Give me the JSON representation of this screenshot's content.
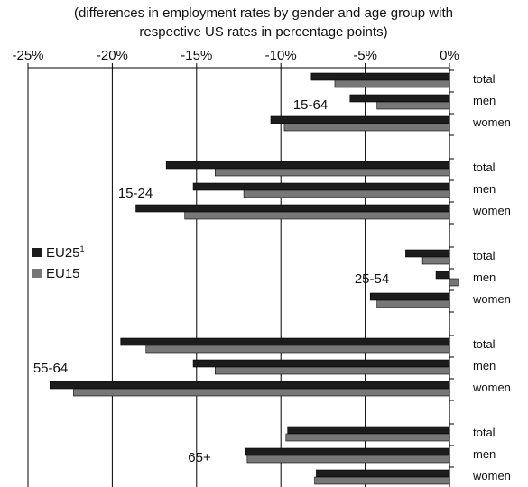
{
  "chart_data": {
    "type": "bar",
    "orientation": "horizontal",
    "title": "(differences in employment rates by gender and age group with respective US rates in percentage points)",
    "title_lines": [
      "(differences in employment rates by gender and age group with",
      "respective US rates in percentage points)"
    ],
    "xlim": [
      -25,
      0
    ],
    "x_ticks": [
      -25,
      -20,
      -15,
      -10,
      -5,
      0
    ],
    "x_tick_labels": [
      "-25%",
      "-20%",
      "-15%",
      "-10%",
      "-5%",
      "0%"
    ],
    "grid": "vertical",
    "legend_placement": "left-middle",
    "legend": [
      {
        "label": "EU25",
        "sup": "1",
        "color": "#1c1c1c"
      },
      {
        "label": "EU15",
        "sup": "",
        "color": "#777777"
      }
    ],
    "groups": [
      {
        "label": "15-64",
        "categories": [
          "total",
          "men",
          "women"
        ]
      },
      {
        "label": "15-24",
        "categories": [
          "total",
          "men",
          "women"
        ]
      },
      {
        "label": "25-54",
        "categories": [
          "total",
          "men",
          "women"
        ]
      },
      {
        "label": "55-64",
        "categories": [
          "total",
          "men",
          "women"
        ]
      },
      {
        "label": "65+",
        "categories": [
          "total",
          "men",
          "women"
        ]
      }
    ],
    "series": [
      {
        "name": "EU25",
        "color": "#1c1c1c",
        "values": [
          -8.2,
          -5.9,
          -10.6,
          -16.8,
          -15.2,
          -18.6,
          -2.6,
          -0.8,
          -4.7,
          -19.5,
          -15.2,
          -23.7,
          -9.6,
          -12.1,
          -7.9
        ]
      },
      {
        "name": "EU15",
        "color": "#777777",
        "values": [
          -6.8,
          -4.3,
          -9.8,
          -13.9,
          -12.2,
          -15.7,
          -1.6,
          0.5,
          -4.3,
          -18.0,
          -13.9,
          -22.3,
          -9.7,
          -12.0,
          -8.0
        ]
      }
    ]
  }
}
